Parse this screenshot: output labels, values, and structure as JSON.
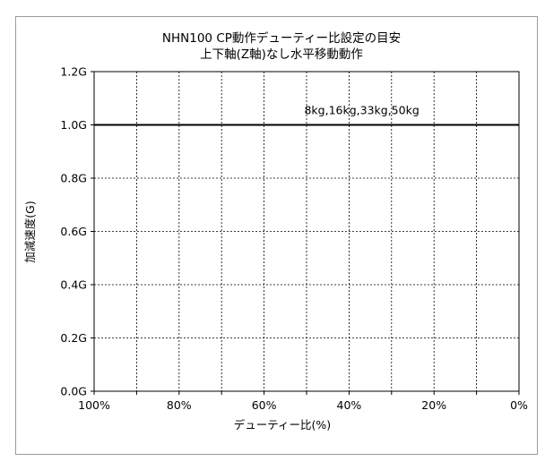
{
  "chart_data": {
    "type": "line",
    "title": [
      "NHN100 CP動作デューティー比設定の目安",
      "上下軸(Z軸)なし水平移動動作"
    ],
    "xlabel": "デューティー比(%)",
    "ylabel": "加減速度(G)",
    "x_reversed": true,
    "xlim": [
      0,
      100
    ],
    "ylim": [
      0,
      1.2
    ],
    "grid": true,
    "x_ticks": [
      100,
      80,
      60,
      40,
      20,
      0
    ],
    "x_tick_labels": [
      "100%",
      "80%",
      "60%",
      "40%",
      "20%",
      "0%"
    ],
    "x_grid": [
      90,
      80,
      70,
      60,
      50,
      40,
      30,
      20,
      10
    ],
    "y_ticks": [
      0,
      0.2,
      0.4,
      0.6,
      0.8,
      1.0,
      1.2
    ],
    "y_tick_labels": [
      "0.0G",
      "0.2G",
      "0.4G",
      "0.6G",
      "0.8G",
      "1.0G",
      "1.2G"
    ],
    "series": [
      {
        "name": "8kg,16kg,33kg,50kg",
        "x": [
          100,
          0
        ],
        "y": [
          1.0,
          1.0
        ]
      }
    ],
    "annotations": [
      {
        "text": "8kg,16kg,33kg,50kg",
        "x": 37,
        "y": 1.04
      }
    ]
  }
}
